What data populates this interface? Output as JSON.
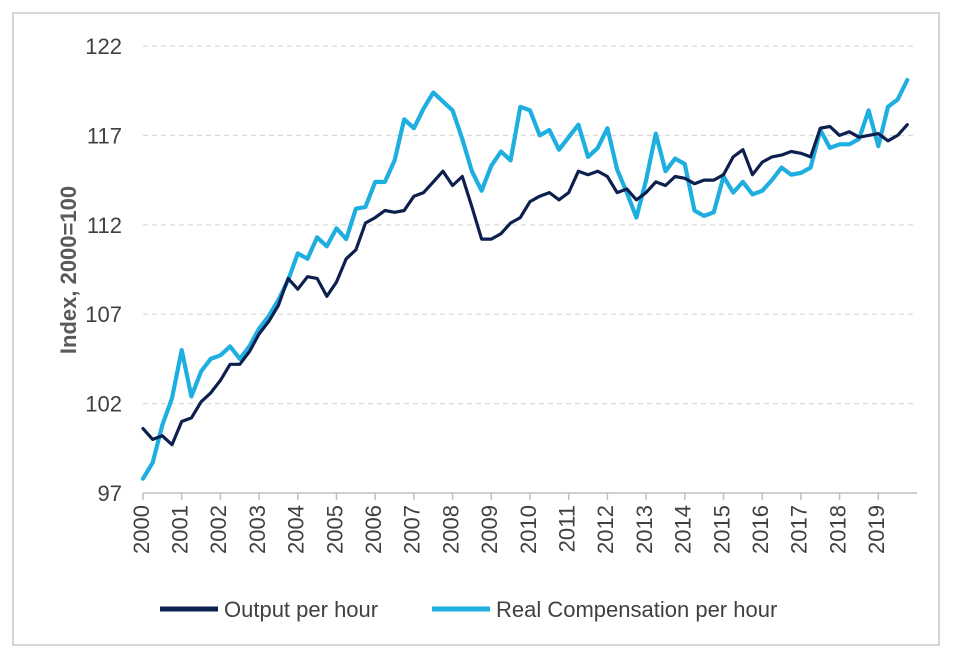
{
  "chart_data": {
    "type": "line",
    "title": "",
    "xlabel": "",
    "ylabel": "Index, 2000=100",
    "ylim": [
      97,
      122
    ],
    "yticks": [
      97,
      102,
      107,
      112,
      117,
      122
    ],
    "xlim": [
      2000,
      2020
    ],
    "xticks": [
      "2000",
      "2001",
      "2002",
      "2003",
      "2004",
      "2005",
      "2006",
      "2007",
      "2008",
      "2009",
      "2010",
      "2011",
      "2012",
      "2013",
      "2014",
      "2015",
      "2016",
      "2017",
      "2018",
      "2019"
    ],
    "grid": "horizontal dashed",
    "legend": "bottom",
    "colors": {
      "output": "#0d1f4f",
      "compensation": "#1eaee0"
    },
    "x": [
      2000.0,
      2000.25,
      2000.5,
      2000.75,
      2001.0,
      2001.25,
      2001.5,
      2001.75,
      2002.0,
      2002.25,
      2002.5,
      2002.75,
      2003.0,
      2003.25,
      2003.5,
      2003.75,
      2004.0,
      2004.25,
      2004.5,
      2004.75,
      2005.0,
      2005.25,
      2005.5,
      2005.75,
      2006.0,
      2006.25,
      2006.5,
      2006.75,
      2007.0,
      2007.25,
      2007.5,
      2007.75,
      2008.0,
      2008.25,
      2008.5,
      2008.75,
      2009.0,
      2009.25,
      2009.5,
      2009.75,
      2010.0,
      2010.25,
      2010.5,
      2010.75,
      2011.0,
      2011.25,
      2011.5,
      2011.75,
      2012.0,
      2012.25,
      2012.5,
      2012.75,
      2013.0,
      2013.25,
      2013.5,
      2013.75,
      2014.0,
      2014.25,
      2014.5,
      2014.75,
      2015.0,
      2015.25,
      2015.5,
      2015.75,
      2016.0,
      2016.25,
      2016.5,
      2016.75,
      2017.0,
      2017.25,
      2017.5,
      2017.75,
      2018.0,
      2018.25,
      2018.5,
      2018.75,
      2019.0,
      2019.25,
      2019.5,
      2019.75
    ],
    "series": [
      {
        "name": "Output per hour",
        "values": [
          100.6,
          100.0,
          100.2,
          99.7,
          101.0,
          101.2,
          102.1,
          102.6,
          103.3,
          104.2,
          104.2,
          104.9,
          105.9,
          106.6,
          107.5,
          109.0,
          108.4,
          109.1,
          109.0,
          108.0,
          108.8,
          110.1,
          110.6,
          112.1,
          112.4,
          112.8,
          112.7,
          112.8,
          113.6,
          113.8,
          114.4,
          115.0,
          114.2,
          114.7,
          113.0,
          111.2,
          111.2,
          111.5,
          112.1,
          112.4,
          113.3,
          113.6,
          113.8,
          113.4,
          113.8,
          115.0,
          114.8,
          115.0,
          114.7,
          113.8,
          114.0,
          113.4,
          113.8,
          114.4,
          114.2,
          114.7,
          114.6,
          114.3,
          114.5,
          114.5,
          114.8,
          115.8,
          116.2,
          114.8,
          115.5,
          115.8,
          115.9,
          116.1,
          116.0,
          115.8,
          117.4,
          117.5,
          117.0,
          117.2,
          116.9,
          117.0,
          117.1,
          116.7,
          117.0,
          117.6
        ]
      },
      {
        "name": "Real Compensation per hour",
        "values": [
          97.8,
          98.7,
          100.8,
          102.3,
          105.0,
          102.4,
          103.8,
          104.5,
          104.7,
          105.2,
          104.5,
          105.2,
          106.2,
          106.9,
          107.8,
          108.9,
          110.4,
          110.1,
          111.3,
          110.8,
          111.8,
          111.2,
          112.9,
          113.0,
          114.4,
          114.4,
          115.6,
          117.9,
          117.4,
          118.5,
          119.4,
          118.9,
          118.4,
          116.8,
          115.0,
          113.9,
          115.3,
          116.1,
          115.6,
          118.6,
          118.4,
          117.0,
          117.3,
          116.2,
          116.9,
          117.6,
          115.8,
          116.3,
          117.4,
          115.1,
          113.8,
          112.4,
          114.5,
          117.1,
          115.0,
          115.7,
          115.4,
          112.8,
          112.5,
          112.7,
          114.7,
          113.8,
          114.4,
          113.7,
          113.9,
          114.5,
          115.2,
          114.8,
          114.9,
          115.2,
          117.3,
          116.3,
          116.5,
          116.5,
          116.8,
          118.4,
          116.4,
          118.6,
          119.0,
          120.1
        ]
      }
    ]
  }
}
